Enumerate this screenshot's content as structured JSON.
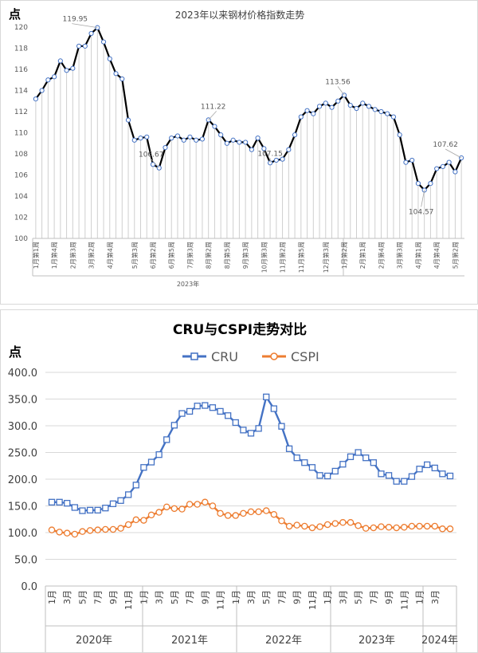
{
  "chart_data": [
    {
      "type": "line",
      "title": "2023年以来钢材价格指数走势",
      "ylabel": "点",
      "ylim": [
        100,
        120
      ],
      "yticks": [
        "100",
        "102",
        "104",
        "106",
        "108",
        "110",
        "112",
        "114",
        "116",
        "118",
        "120"
      ],
      "grid": false,
      "year_label": "2023年",
      "series": [
        {
          "values": [
            113.2,
            114.0,
            115.0,
            115.3,
            116.8,
            115.9,
            116.1,
            118.2,
            118.2,
            119.4,
            119.95,
            118.6,
            117.0,
            115.6,
            115.1,
            111.2,
            109.3,
            109.5,
            109.6,
            107.0,
            106.67,
            108.6,
            109.5,
            109.7,
            109.3,
            109.6,
            109.3,
            109.4,
            111.22,
            110.6,
            109.8,
            109.0,
            109.3,
            109.1,
            109.1,
            108.4,
            109.5,
            108.5,
            107.15,
            107.4,
            107.5,
            108.4,
            109.8,
            111.5,
            112.1,
            111.8,
            112.5,
            112.8,
            112.4,
            113.0,
            113.56,
            112.6,
            112.3,
            112.8,
            112.5,
            112.2,
            112.0,
            111.8,
            111.5,
            109.8,
            107.2,
            107.4,
            105.2,
            104.57,
            105.2,
            106.6,
            106.8,
            107.2,
            106.3,
            107.62
          ],
          "color": "#000000"
        }
      ],
      "x_labels": [
        "1月第1周",
        "1月第4周",
        "2月第3周",
        "3月第2周",
        "4月第4周",
        "5月第3周",
        "6月第2周",
        "6月第5周",
        "7月第3周",
        "8月第2周",
        "8月第5周",
        "9月第3周",
        "10月第3周",
        "11月第2周",
        "11月第5周",
        "12月第3周",
        "1月第2周",
        "2月第1周",
        "2月第4周",
        "3月第3周",
        "4月第1周",
        "4月第4周",
        "5月第2周"
      ],
      "annotations": [
        "119.95",
        "106.67",
        "111.22",
        "107.15",
        "113.56",
        "104.57",
        "107.62"
      ]
    },
    {
      "type": "line",
      "title": "CRU与CSPI走势对比",
      "ylabel": "点",
      "ylim": [
        0,
        400
      ],
      "yticks": [
        "0.0",
        "50.0",
        "100.0",
        "150.0",
        "200.0",
        "250.0",
        "300.0",
        "350.0",
        "400.0"
      ],
      "grid": true,
      "legend": "top",
      "x_labels": [
        "1月",
        "3月",
        "5月",
        "7月",
        "9月",
        "11月",
        "1月",
        "3月",
        "5月",
        "7月",
        "9月",
        "11月",
        "1月",
        "3月",
        "5月",
        "7月",
        "9月",
        "11月",
        "1月",
        "3月",
        "5月",
        "7月",
        "9月",
        "11月",
        "1月",
        "3月"
      ],
      "years": [
        "2020年",
        "2021年",
        "2022年",
        "2023年",
        "2024年"
      ],
      "series": [
        {
          "name": "CRU",
          "color": "#4472C4",
          "values": [
            157,
            157,
            155,
            147,
            141,
            142,
            142,
            146,
            154,
            160,
            171,
            189,
            222,
            232,
            246,
            274,
            301,
            323,
            327,
            337,
            338,
            334,
            327,
            319,
            306,
            292,
            286,
            295,
            354,
            332,
            299,
            257,
            240,
            231,
            222,
            207,
            206,
            215,
            228,
            242,
            250,
            240,
            231,
            210,
            207,
            196,
            196,
            205,
            219,
            227,
            221,
            210,
            206
          ]
        },
        {
          "name": "CSPI",
          "color": "#ED7D31",
          "values": [
            105,
            101,
            99,
            97,
            102,
            104,
            105,
            106,
            106,
            108,
            115,
            124,
            123,
            133,
            138,
            148,
            145,
            144,
            153,
            153,
            157,
            150,
            136,
            132,
            132,
            136,
            139,
            139,
            141,
            134,
            122,
            112,
            114,
            112,
            109,
            111,
            115,
            117,
            119,
            119,
            113,
            108,
            109,
            111,
            110,
            109,
            110,
            112,
            112,
            112,
            112,
            107,
            107
          ]
        }
      ]
    }
  ]
}
